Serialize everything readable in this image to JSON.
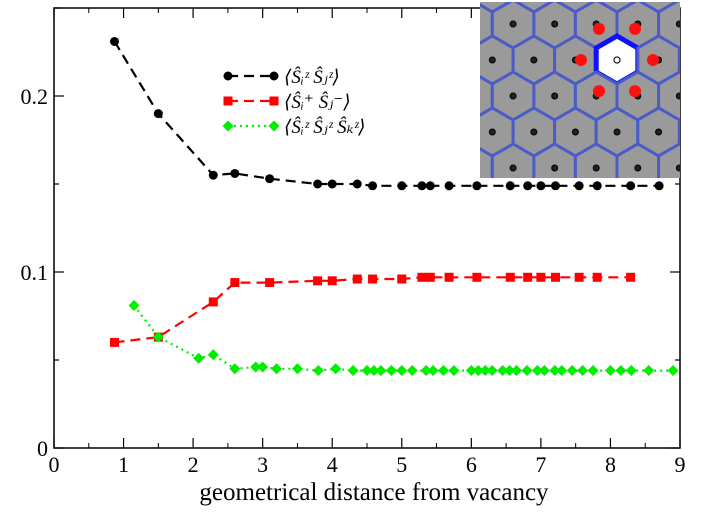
{
  "chart_data": {
    "type": "line",
    "xlabel": "geometrical distance from vacancy",
    "ylabel": "",
    "xlim": [
      0,
      9
    ],
    "ylim": [
      0,
      0.25
    ],
    "x_ticks": [
      "0",
      "1",
      "2",
      "3",
      "4",
      "5",
      "6",
      "7",
      "8",
      "9"
    ],
    "y_ticks": [
      {
        "value": 0,
        "label": "0"
      },
      {
        "value": 0.1,
        "label": "0.1"
      },
      {
        "value": 0.2,
        "label": "0.2"
      }
    ],
    "legend_position": "top-center",
    "inset": "honeycomb lattice with central vacancy (top-right)",
    "series": [
      {
        "name": "⟨Ŝᵢᶻ Ŝⱼᶻ⟩",
        "color": "#000000",
        "marker": "circle",
        "line": "dashed",
        "x": [
          0.87,
          1.5,
          2.29,
          2.6,
          3.1,
          3.79,
          4.0,
          4.36,
          4.58,
          5.0,
          5.29,
          5.41,
          5.68,
          6.08,
          6.56,
          6.81,
          7.0,
          7.21,
          7.55,
          7.81,
          8.29,
          8.7
        ],
        "values": [
          0.231,
          0.19,
          0.155,
          0.156,
          0.153,
          0.15,
          0.15,
          0.15,
          0.149,
          0.149,
          0.149,
          0.149,
          0.149,
          0.149,
          0.149,
          0.149,
          0.149,
          0.149,
          0.149,
          0.149,
          0.149,
          0.149
        ]
      },
      {
        "name": "⟨Ŝᵢ⁺ Ŝⱼ⁻⟩",
        "color": "#ff0000",
        "marker": "square",
        "line": "dashed",
        "x": [
          0.87,
          1.5,
          2.29,
          2.6,
          3.1,
          3.79,
          4.0,
          4.36,
          4.58,
          5.0,
          5.29,
          5.41,
          5.68,
          6.08,
          6.56,
          6.81,
          7.0,
          7.21,
          7.55,
          7.81,
          8.29
        ],
        "values": [
          0.06,
          0.063,
          0.083,
          0.094,
          0.094,
          0.095,
          0.095,
          0.096,
          0.096,
          0.096,
          0.097,
          0.097,
          0.097,
          0.097,
          0.097,
          0.097,
          0.097,
          0.097,
          0.097,
          0.097,
          0.097
        ]
      },
      {
        "name": "⟨Ŝᵢᶻ Ŝⱼᶻ Ŝₖᶻ⟩",
        "color": "#00ee00",
        "marker": "diamond",
        "line": "dotted",
        "x": [
          1.15,
          1.5,
          2.08,
          2.29,
          2.6,
          2.9,
          3.0,
          3.2,
          3.5,
          3.8,
          4.05,
          4.3,
          4.5,
          4.6,
          4.7,
          4.85,
          5.0,
          5.15,
          5.35,
          5.45,
          5.6,
          5.75,
          6.0,
          6.1,
          6.2,
          6.3,
          6.45,
          6.55,
          6.65,
          6.8,
          6.95,
          7.05,
          7.2,
          7.3,
          7.45,
          7.6,
          7.75,
          8.0,
          8.15,
          8.3,
          8.55,
          8.9
        ],
        "values": [
          0.081,
          0.063,
          0.051,
          0.053,
          0.045,
          0.046,
          0.046,
          0.045,
          0.045,
          0.044,
          0.045,
          0.044,
          0.044,
          0.044,
          0.044,
          0.044,
          0.044,
          0.044,
          0.044,
          0.044,
          0.044,
          0.044,
          0.044,
          0.044,
          0.044,
          0.044,
          0.044,
          0.044,
          0.044,
          0.044,
          0.044,
          0.044,
          0.044,
          0.044,
          0.044,
          0.044,
          0.044,
          0.044,
          0.044,
          0.044,
          0.044,
          0.044
        ]
      }
    ]
  }
}
